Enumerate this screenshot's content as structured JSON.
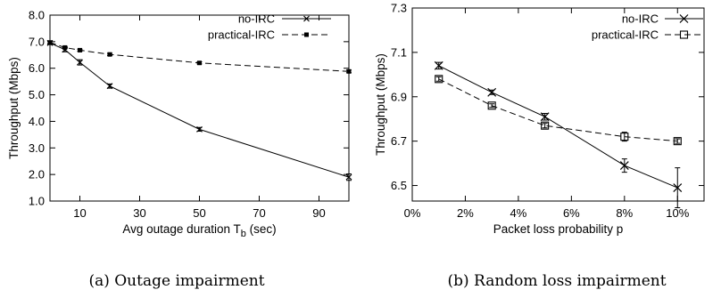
{
  "chart_data": [
    {
      "type": "line",
      "caption": "(a) Outage impairment",
      "xlabel": "Avg outage duration T",
      "xlabel_sub": "b",
      "xlabel_unit": " (sec)",
      "ylabel": "Throughput (Mbps)",
      "xlim": [
        0,
        100
      ],
      "ylim": [
        1.0,
        8.0
      ],
      "xticks": [
        10,
        30,
        50,
        70,
        90
      ],
      "xtick_labels": [
        "10",
        "30",
        "50",
        "70",
        "90"
      ],
      "yticks": [
        1.0,
        2.0,
        3.0,
        4.0,
        5.0,
        6.0,
        7.0,
        8.0
      ],
      "ytick_labels": [
        "1.0",
        "2.0",
        "3.0",
        "4.0",
        "5.0",
        "6.0",
        "7.0",
        "8.0"
      ],
      "grid": false,
      "legend_position": "top-right",
      "series": [
        {
          "name": "no-IRC",
          "style": "solid",
          "marker": "x",
          "x": [
            0,
            5,
            10,
            20,
            50,
            100
          ],
          "y": [
            6.95,
            6.7,
            6.22,
            5.33,
            3.7,
            1.9
          ],
          "err": [
            0.06,
            0.08,
            0.1,
            0.08,
            0.07,
            0.12
          ]
        },
        {
          "name": "practical-IRC",
          "style": "dashed",
          "marker": "filled-square",
          "x": [
            0,
            5,
            10,
            20,
            50,
            100
          ],
          "y": [
            6.97,
            6.78,
            6.68,
            6.52,
            6.2,
            5.88
          ],
          "err": [
            0.04,
            0.04,
            0.04,
            0.04,
            0.04,
            0.05
          ]
        }
      ]
    },
    {
      "type": "line",
      "caption": "(b) Random loss impairment",
      "xlabel": "Packet loss probability p",
      "ylabel": "Throughput (Mbps)",
      "xlim": [
        0,
        11
      ],
      "ylim": [
        6.43,
        7.3
      ],
      "xticks": [
        0,
        2,
        4,
        6,
        8,
        10
      ],
      "xtick_labels": [
        "0%",
        "2%",
        "4%",
        "6%",
        "8%",
        "10%"
      ],
      "yticks": [
        6.5,
        6.7,
        6.9,
        7.1,
        7.3
      ],
      "ytick_labels": [
        "6.5",
        "6.7",
        "6.9",
        "7.1",
        "7.3"
      ],
      "grid": false,
      "legend_position": "top-right",
      "series": [
        {
          "name": "no-IRC",
          "style": "solid",
          "marker": "x",
          "x": [
            1,
            3,
            5,
            8,
            10
          ],
          "y": [
            7.04,
            6.92,
            6.81,
            6.59,
            6.49
          ],
          "err": [
            0.015,
            0.01,
            0.015,
            0.03,
            0.09
          ]
        },
        {
          "name": "practical-IRC",
          "style": "dashed",
          "marker": "open-square",
          "x": [
            1,
            3,
            5,
            8,
            10
          ],
          "y": [
            6.98,
            6.86,
            6.77,
            6.72,
            6.7
          ],
          "err": [
            0.01,
            0.008,
            0.01,
            0.02,
            0.01
          ]
        }
      ]
    }
  ]
}
